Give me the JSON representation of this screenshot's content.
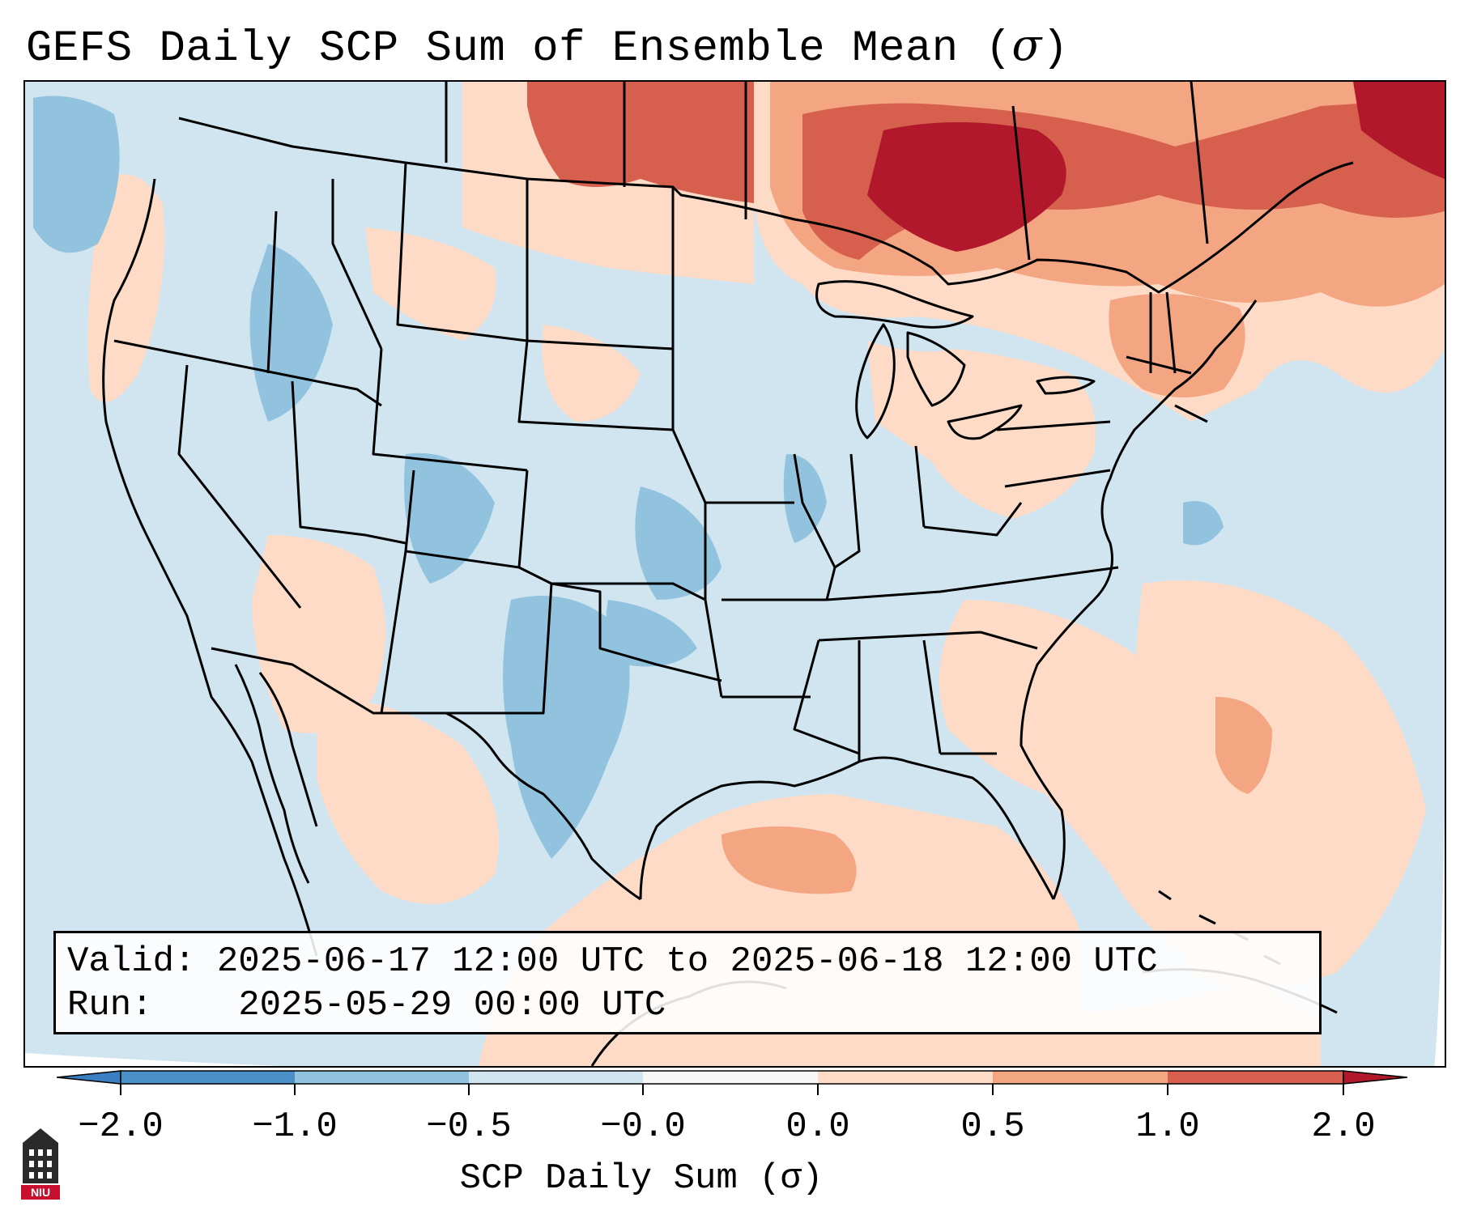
{
  "title": {
    "text": "GEFS Daily SCP Sum of Ensemble Mean (",
    "symbol": "σ",
    "close": ")"
  },
  "info": {
    "valid_label": "Valid:",
    "valid_value": "2025-06-17 12:00 UTC to 2025-06-18 12:00 UTC",
    "run_label": "Run:",
    "run_value": "2025-05-29 00:00 UTC"
  },
  "colorbar": {
    "label": "SCP Daily Sum (σ)",
    "ticks": [
      "−2.0",
      "−1.0",
      "−0.5",
      "−0.0",
      "0.0",
      "0.5",
      "1.0",
      "2.0"
    ],
    "bins": [
      {
        "range": "below −2.0",
        "color": "#3a7fc1"
      },
      {
        "range": "−2.0 to −1.0",
        "color": "#4a90c6"
      },
      {
        "range": "−1.0 to −0.5",
        "color": "#92c3de"
      },
      {
        "range": "−0.5 to −0.0",
        "color": "#d1e5f0"
      },
      {
        "range": "−0.0 to 0.0",
        "color": "#f7f7f7"
      },
      {
        "range": "0.0 to 0.5",
        "color": "#fddbc7"
      },
      {
        "range": "0.5 to 1.0",
        "color": "#f4a582"
      },
      {
        "range": "1.0 to 2.0",
        "color": "#d6604d"
      },
      {
        "range": "above 2.0",
        "color": "#b2182b"
      }
    ]
  },
  "logo": {
    "text": "NIU"
  }
}
